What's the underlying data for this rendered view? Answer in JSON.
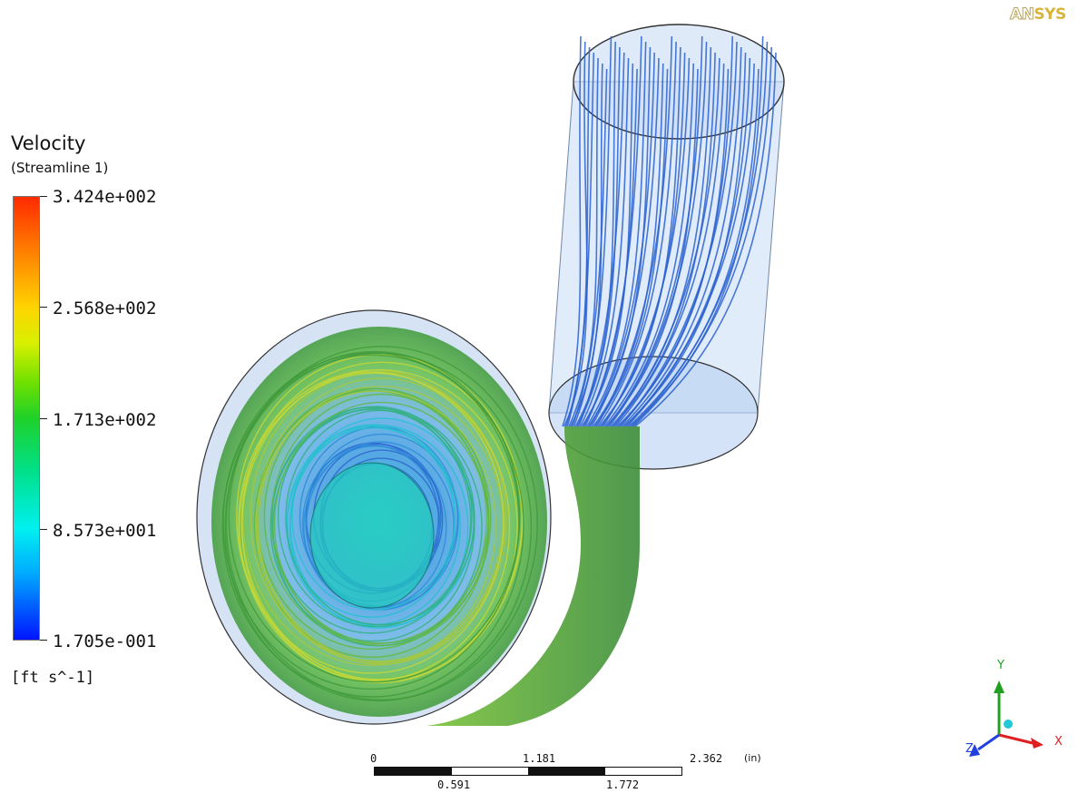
{
  "brand": {
    "logo_an": "AN",
    "logo_sys": "SYS"
  },
  "legend": {
    "title": "Velocity",
    "subtitle": "(Streamline 1)",
    "ticks": [
      "3.424e+002",
      "2.568e+002",
      "1.713e+002",
      "8.573e+001",
      "1.705e-001"
    ],
    "unit": "[ft s^-1]",
    "min": 0.1705,
    "max": 342.4
  },
  "scale_bar": {
    "top_labels": [
      "0",
      "1.181",
      "2.362"
    ],
    "bottom_labels": [
      "0.591",
      "1.772"
    ],
    "unit": "(in)"
  },
  "axes": {
    "x": "X",
    "y": "Y",
    "z": "Z"
  },
  "colors": {
    "x_axis": "#e02020",
    "y_axis": "#20a020",
    "z_axis": "#2040e0",
    "triad_center": "#20c8d8"
  }
}
